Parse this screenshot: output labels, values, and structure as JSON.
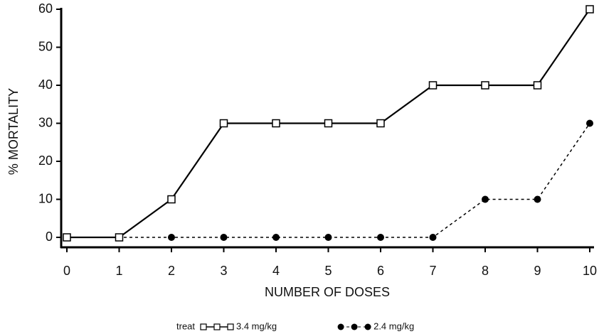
{
  "chart_data": {
    "type": "line",
    "x_label": "NUMBER OF DOSES",
    "y_label": "% MORTALITY",
    "legend_title": "treat",
    "x": [
      0,
      1,
      2,
      3,
      4,
      5,
      6,
      7,
      8,
      9,
      10
    ],
    "series": [
      {
        "name": "3.4 mg/kg",
        "color": "#000000",
        "marker": "open-square",
        "linestyle": "solid",
        "values": [
          0,
          0,
          10,
          30,
          30,
          30,
          30,
          40,
          40,
          40,
          60
        ]
      },
      {
        "name": "2.4 mg/kg",
        "color": "#000000",
        "marker": "filled-circle",
        "linestyle": "dashed",
        "values": [
          0,
          0,
          0,
          0,
          0,
          0,
          0,
          0,
          10,
          10,
          30
        ]
      }
    ],
    "xlim": [
      0,
      10
    ],
    "xticks": [
      0,
      1,
      2,
      3,
      4,
      5,
      6,
      7,
      8,
      9,
      10
    ],
    "ylim": [
      0,
      60
    ],
    "yticks": [
      0,
      10,
      20,
      30,
      40,
      50,
      60
    ],
    "grid": false,
    "legend": "bottom"
  }
}
